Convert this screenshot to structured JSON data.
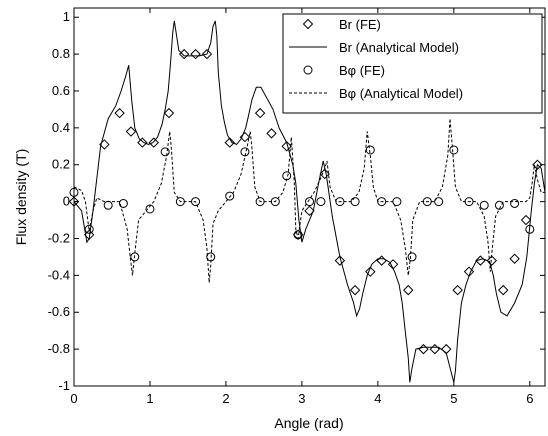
{
  "chart_data": {
    "type": "line",
    "xlabel": "Angle (rad)",
    "ylabel": "Flux density (T)",
    "xlim": [
      0,
      6.2
    ],
    "ylim": [
      -1,
      1.05
    ],
    "xticks": [
      "0",
      "1",
      "2",
      "3",
      "4",
      "5",
      "6"
    ],
    "yticks": [
      "-1",
      "-0.8",
      "-0.6",
      "-0.4",
      "-0.2",
      "0",
      "0.2",
      "0.4",
      "0.6",
      "0.8",
      "1"
    ],
    "grid": false,
    "legend_position": "top-right",
    "series": [
      {
        "name": "Br (FE)",
        "marker": "diamond",
        "line": "none",
        "color": "#000000",
        "x": [
          0.0,
          0.2,
          0.4,
          0.6,
          0.75,
          0.9,
          1.05,
          1.25,
          1.45,
          1.6,
          1.75,
          2.05,
          2.25,
          2.45,
          2.6,
          2.8,
          2.95,
          3.1,
          3.3,
          3.5,
          3.7,
          3.9,
          4.05,
          4.2,
          4.4,
          4.6,
          4.75,
          4.9,
          5.05,
          5.2,
          5.35,
          5.5,
          5.65,
          5.8,
          5.95,
          6.1
        ],
        "y": [
          0.0,
          -0.18,
          0.31,
          0.48,
          0.38,
          0.32,
          0.32,
          0.48,
          0.8,
          0.8,
          0.8,
          0.32,
          0.35,
          0.48,
          0.37,
          0.3,
          -0.18,
          -0.05,
          0.15,
          -0.32,
          -0.48,
          -0.38,
          -0.32,
          -0.34,
          -0.48,
          -0.8,
          -0.8,
          -0.8,
          -0.48,
          -0.38,
          -0.32,
          -0.32,
          -0.48,
          -0.31,
          -0.1,
          0.2
        ]
      },
      {
        "name": "Br (Analytical Model)",
        "marker": "none",
        "line": "solid",
        "color": "#000000",
        "x": [
          0.0,
          0.1,
          0.17,
          0.2,
          0.25,
          0.35,
          0.45,
          0.55,
          0.62,
          0.68,
          0.72,
          0.76,
          0.8,
          0.86,
          0.92,
          0.98,
          1.04,
          1.1,
          1.16,
          1.2,
          1.24,
          1.27,
          1.3,
          1.32,
          1.35,
          1.38,
          1.45,
          1.55,
          1.65,
          1.75,
          1.8,
          1.83,
          1.86,
          1.88,
          1.9,
          1.94,
          1.98,
          2.02,
          2.08,
          2.14,
          2.2,
          2.26,
          2.3,
          2.34,
          2.4,
          2.46,
          2.54,
          2.62,
          2.7,
          2.8,
          2.88,
          2.92,
          2.96,
          3.0,
          3.05,
          3.15,
          3.22,
          3.28,
          3.32,
          3.4,
          3.5,
          3.6,
          3.68,
          3.72,
          3.76,
          3.8,
          3.86,
          3.92,
          4.0,
          4.08,
          4.16,
          4.22,
          4.28,
          4.32,
          4.36,
          4.4,
          4.42,
          4.45,
          4.5,
          4.6,
          4.7,
          4.8,
          4.9,
          4.95,
          5.0,
          5.02,
          5.05,
          5.1,
          5.16,
          5.22,
          5.3,
          5.38,
          5.44,
          5.48,
          5.52,
          5.56,
          5.62,
          5.7,
          5.8,
          5.9,
          5.96,
          6.02,
          6.06,
          6.1,
          6.15,
          6.2
        ],
        "y": [
          0.0,
          -0.05,
          -0.22,
          -0.2,
          -0.05,
          0.3,
          0.45,
          0.52,
          0.6,
          0.68,
          0.74,
          0.55,
          0.4,
          0.34,
          0.32,
          0.31,
          0.32,
          0.35,
          0.42,
          0.5,
          0.6,
          0.75,
          0.92,
          0.98,
          0.9,
          0.82,
          0.79,
          0.79,
          0.79,
          0.8,
          0.86,
          0.95,
          0.98,
          0.9,
          0.7,
          0.52,
          0.43,
          0.36,
          0.32,
          0.31,
          0.34,
          0.4,
          0.47,
          0.55,
          0.62,
          0.62,
          0.56,
          0.5,
          0.4,
          0.32,
          0.2,
          0.1,
          -0.1,
          -0.22,
          -0.15,
          -0.05,
          0.1,
          0.22,
          0.15,
          -0.08,
          -0.3,
          -0.45,
          -0.55,
          -0.62,
          -0.58,
          -0.5,
          -0.4,
          -0.34,
          -0.31,
          -0.31,
          -0.33,
          -0.38,
          -0.45,
          -0.55,
          -0.7,
          -0.85,
          -0.98,
          -0.9,
          -0.8,
          -0.79,
          -0.79,
          -0.79,
          -0.82,
          -0.9,
          -0.98,
          -0.92,
          -0.75,
          -0.55,
          -0.45,
          -0.38,
          -0.32,
          -0.31,
          -0.32,
          -0.34,
          -0.4,
          -0.5,
          -0.6,
          -0.62,
          -0.55,
          -0.45,
          -0.3,
          -0.05,
          0.1,
          0.2,
          0.18,
          0.05
        ]
      },
      {
        "name": "Bφ (FE)",
        "marker": "circle",
        "line": "none",
        "color": "#000000",
        "x": [
          0.0,
          0.2,
          0.45,
          0.65,
          0.8,
          1.0,
          1.2,
          1.4,
          1.6,
          1.8,
          2.05,
          2.25,
          2.45,
          2.65,
          2.8,
          2.95,
          3.1,
          3.25,
          3.5,
          3.7,
          3.9,
          4.05,
          4.25,
          4.45,
          4.65,
          4.8,
          5.0,
          5.2,
          5.4,
          5.6,
          5.8,
          6.0
        ],
        "y": [
          0.05,
          -0.15,
          -0.02,
          -0.01,
          -0.3,
          -0.04,
          0.27,
          0.0,
          0.0,
          -0.3,
          0.03,
          0.27,
          0.0,
          0.0,
          0.14,
          -0.18,
          0.0,
          0.0,
          0.0,
          0.0,
          0.28,
          0.0,
          0.0,
          -0.3,
          0.0,
          0.0,
          0.28,
          0.0,
          -0.02,
          -0.02,
          -0.01,
          -0.15
        ]
      },
      {
        "name": "Bφ (Analytical Model)",
        "marker": "none",
        "line": "dashed",
        "color": "#000000",
        "x": [
          0.0,
          0.1,
          0.15,
          0.2,
          0.25,
          0.3,
          0.4,
          0.5,
          0.6,
          0.7,
          0.74,
          0.77,
          0.8,
          0.85,
          0.95,
          1.05,
          1.15,
          1.22,
          1.26,
          1.28,
          1.32,
          1.4,
          1.5,
          1.6,
          1.7,
          1.75,
          1.78,
          1.8,
          1.83,
          1.9,
          2.0,
          2.1,
          2.2,
          2.28,
          2.32,
          2.34,
          2.38,
          2.45,
          2.55,
          2.65,
          2.75,
          2.82,
          2.86,
          2.9,
          2.92,
          2.95,
          3.0,
          3.08,
          3.16,
          3.24,
          3.3,
          3.33,
          3.37,
          3.45,
          3.55,
          3.65,
          3.75,
          3.82,
          3.86,
          3.9,
          3.94,
          4.0,
          4.1,
          4.2,
          4.3,
          4.36,
          4.4,
          4.43,
          4.46,
          4.55,
          4.65,
          4.75,
          4.85,
          4.92,
          4.95,
          4.98,
          5.02,
          5.1,
          5.2,
          5.3,
          5.4,
          5.45,
          5.48,
          5.5,
          5.55,
          5.65,
          5.75,
          5.85,
          5.95,
          6.0,
          6.03,
          6.06,
          6.1,
          6.15,
          6.2
        ],
        "y": [
          0.08,
          0.06,
          0.0,
          -0.16,
          -0.05,
          0.02,
          0.0,
          0.0,
          0.0,
          -0.15,
          -0.3,
          -0.4,
          -0.28,
          -0.1,
          -0.05,
          0.0,
          0.1,
          0.25,
          0.38,
          0.3,
          0.05,
          0.0,
          0.0,
          0.0,
          -0.1,
          -0.25,
          -0.44,
          -0.35,
          -0.12,
          -0.05,
          0.0,
          0.05,
          0.15,
          0.3,
          0.38,
          0.3,
          0.08,
          0.0,
          0.0,
          0.0,
          0.05,
          0.15,
          0.35,
          0.1,
          -0.15,
          -0.2,
          -0.05,
          0.0,
          0.05,
          0.12,
          0.18,
          0.22,
          0.08,
          0.0,
          0.0,
          0.0,
          0.05,
          0.18,
          0.38,
          0.25,
          0.08,
          0.0,
          0.0,
          0.0,
          -0.1,
          -0.25,
          -0.4,
          -0.3,
          -0.1,
          0.0,
          0.0,
          0.0,
          0.08,
          0.25,
          0.45,
          0.3,
          0.08,
          0.0,
          0.0,
          0.0,
          -0.08,
          -0.22,
          -0.38,
          -0.28,
          -0.08,
          0.0,
          0.0,
          0.0,
          0.0,
          0.02,
          0.1,
          0.2,
          0.12,
          0.05,
          0.05
        ]
      }
    ]
  }
}
